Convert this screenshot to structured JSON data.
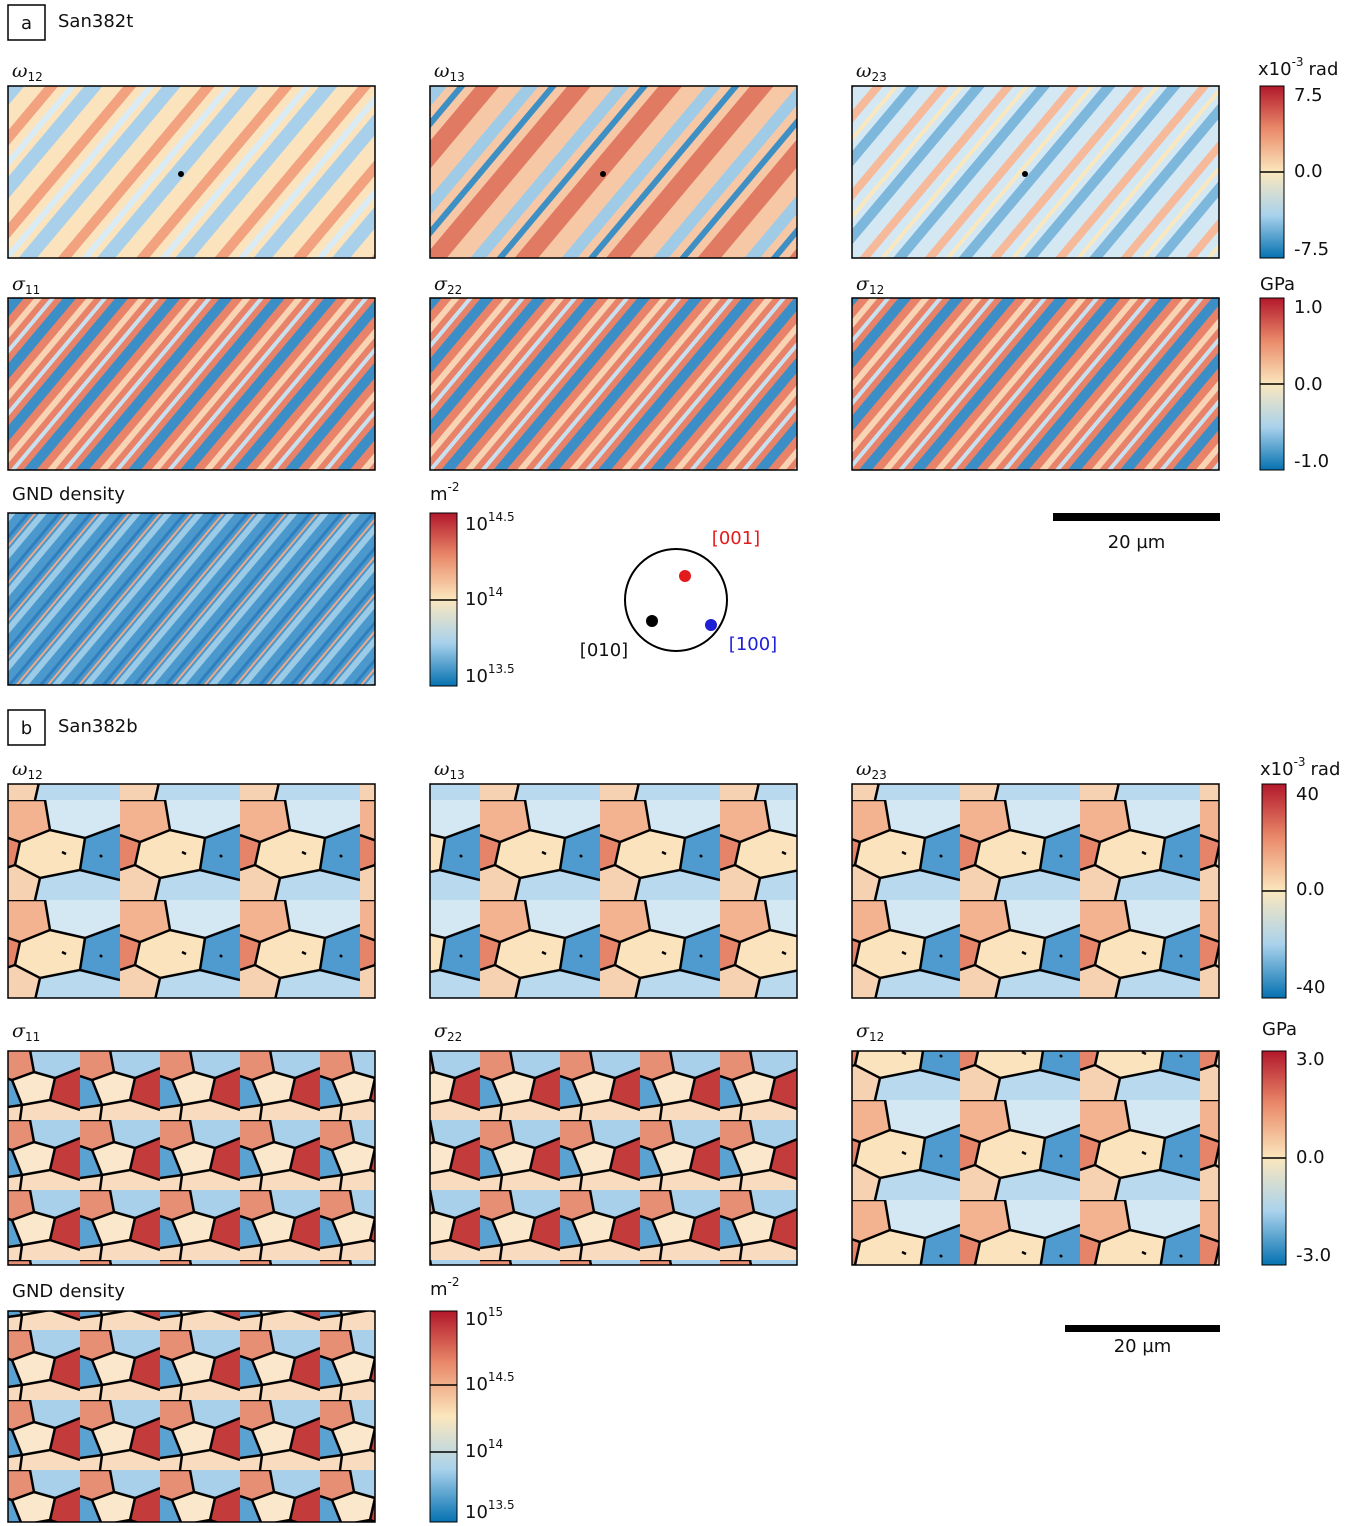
{
  "panels": [
    {
      "label": "a",
      "sample": "San382t",
      "maps": [
        {
          "symbol": "ω",
          "sub": "12"
        },
        {
          "symbol": "ω",
          "sub": "13"
        },
        {
          "symbol": "ω",
          "sub": "23"
        },
        {
          "symbol": "σ",
          "sub": "11"
        },
        {
          "symbol": "σ",
          "sub": "22"
        },
        {
          "symbol": "σ",
          "sub": "12"
        }
      ],
      "gnd_label": "GND density",
      "rotation_colorbar": {
        "unit_prefix": "x10",
        "unit_exp": "-3",
        "unit_suffix": "rad",
        "ticks": [
          "7.5",
          "0.0",
          "-7.5"
        ]
      },
      "stress_colorbar": {
        "unit": "GPa",
        "ticks": [
          "1.0",
          "0.0",
          "-1.0"
        ]
      },
      "gnd_colorbar": {
        "unit": "m",
        "unit_exp": "-2",
        "ticks": [
          {
            "base": "10",
            "exp": "14.5"
          },
          {
            "base": "10",
            "exp": "14"
          },
          {
            "base": "10",
            "exp": "13.5"
          }
        ]
      },
      "scale_bar": "20 µm",
      "pole_figure": {
        "labels": [
          "[001]",
          "[010]",
          "[100]"
        ]
      }
    },
    {
      "label": "b",
      "sample": "San382b",
      "maps": [
        {
          "symbol": "ω",
          "sub": "12"
        },
        {
          "symbol": "ω",
          "sub": "13"
        },
        {
          "symbol": "ω",
          "sub": "23"
        },
        {
          "symbol": "σ",
          "sub": "11"
        },
        {
          "symbol": "σ",
          "sub": "22"
        },
        {
          "symbol": "σ",
          "sub": "12"
        }
      ],
      "gnd_label": "GND density",
      "rotation_colorbar": {
        "unit_prefix": "x10",
        "unit_exp": "-3",
        "unit_suffix": "rad",
        "ticks": [
          "40",
          "0.0",
          "-40"
        ]
      },
      "stress_colorbar": {
        "unit": "GPa",
        "ticks": [
          "3.0",
          "0.0",
          "-3.0"
        ]
      },
      "gnd_colorbar": {
        "unit": "m",
        "unit_exp": "-2",
        "ticks": [
          {
            "base": "10",
            "exp": "15"
          },
          {
            "base": "10",
            "exp": "14.5"
          },
          {
            "base": "10",
            "exp": "14"
          },
          {
            "base": "10",
            "exp": "13.5"
          }
        ]
      },
      "scale_bar": "20 µm"
    }
  ]
}
